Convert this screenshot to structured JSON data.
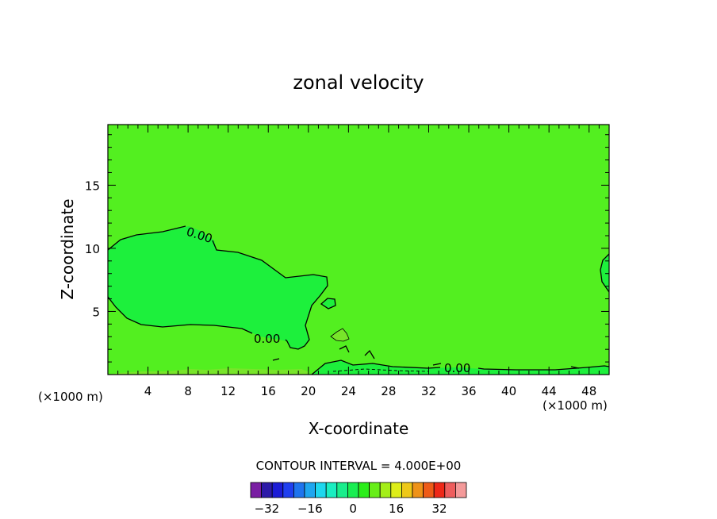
{
  "chart_data": {
    "type": "contour",
    "title": "zonal velocity",
    "xlabel": "X-coordinate",
    "ylabel": "Z-coordinate",
    "x_unit_left": "(×1000 m)",
    "x_unit_right": "(×1000 m)",
    "xlim": [
      0,
      50
    ],
    "ylim": [
      0,
      19.8
    ],
    "x_ticks": [
      4,
      8,
      12,
      16,
      20,
      24,
      28,
      32,
      36,
      40,
      44,
      48
    ],
    "y_ticks": [
      5,
      10,
      15
    ],
    "contour_labels": [
      {
        "text": "0.00",
        "x": 9,
        "y": 11.2
      },
      {
        "text": "0.00",
        "x": 16,
        "y": 2.8
      },
      {
        "text": "0.00",
        "x": 35,
        "y": 0.5
      }
    ],
    "contour_interval_text": "CONTOUR INTERVAL = 4.000E+00",
    "colorbar": {
      "levels": [
        -34,
        -30,
        -26,
        -22,
        -18,
        -14,
        -10,
        -6,
        -2,
        2,
        6,
        10,
        14,
        18,
        22,
        26,
        30,
        34
      ],
      "colors": [
        "#7a1fa3",
        "#2d1aa8",
        "#1c1cd6",
        "#1f3fef",
        "#1e74ee",
        "#1ea6ef",
        "#1ed7ee",
        "#1aeec1",
        "#19ee8c",
        "#19ee52",
        "#2bee1a",
        "#67ee18",
        "#a4ee18",
        "#ddee18",
        "#eec818",
        "#ee9218",
        "#ee5b18",
        "#ee2818",
        "#ee5d5d",
        "#f49a9a"
      ],
      "tick_labels": [
        -32,
        -16,
        0,
        16,
        32
      ]
    },
    "background_color": "#53ef20",
    "negative_region_color": "#1df03c",
    "surface_positive_color": "#78e52a"
  }
}
